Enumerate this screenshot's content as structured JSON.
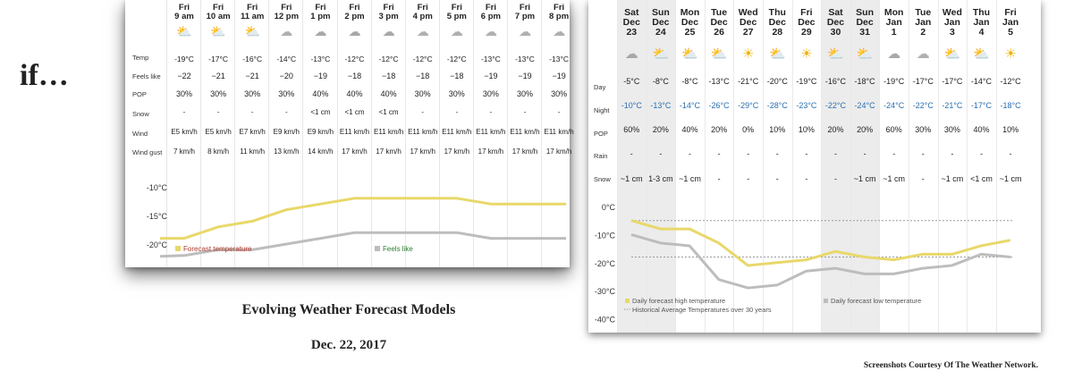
{
  "intro": "if…",
  "caption": {
    "title": "Evolving Weather Forecast Models",
    "date": "Dec. 22, 2017",
    "credit": "Screenshots Courtesy Of The Weather Network."
  },
  "hourly": {
    "row_labels": {
      "temp": "Temp",
      "feels": "Feels like",
      "pop": "POP",
      "snow": "Snow",
      "wind": "Wind",
      "gust": "Wind gust"
    },
    "columns": [
      {
        "day": "Fri",
        "time": "9 am",
        "icon": "partly-sunny-snow-icon",
        "temp": "-19°C",
        "feels": "−22",
        "pop": "30%",
        "snow": "-",
        "wind": "E5 km/h",
        "gust": "7 km/h"
      },
      {
        "day": "Fri",
        "time": "10 am",
        "icon": "partly-sunny-snow-icon",
        "temp": "-17°C",
        "feels": "−21",
        "pop": "30%",
        "snow": "-",
        "wind": "E5 km/h",
        "gust": "8 km/h"
      },
      {
        "day": "Fri",
        "time": "11 am",
        "icon": "partly-sunny-snow-icon",
        "temp": "-16°C",
        "feels": "−21",
        "pop": "30%",
        "snow": "-",
        "wind": "E7 km/h",
        "gust": "11 km/h"
      },
      {
        "day": "Fri",
        "time": "12 pm",
        "icon": "cloudy-icon",
        "temp": "-14°C",
        "feels": "−20",
        "pop": "30%",
        "snow": "-",
        "wind": "E9 km/h",
        "gust": "13 km/h"
      },
      {
        "day": "Fri",
        "time": "1 pm",
        "icon": "snow-cloud-icon",
        "temp": "-13°C",
        "feels": "−19",
        "pop": "40%",
        "snow": "<1 cm",
        "wind": "E9 km/h",
        "gust": "14 km/h"
      },
      {
        "day": "Fri",
        "time": "2 pm",
        "icon": "snow-cloud-icon",
        "temp": "-12°C",
        "feels": "−18",
        "pop": "40%",
        "snow": "<1 cm",
        "wind": "E11 km/h",
        "gust": "17 km/h"
      },
      {
        "day": "Fri",
        "time": "3 pm",
        "icon": "snow-cloud-icon",
        "temp": "-12°C",
        "feels": "−18",
        "pop": "40%",
        "snow": "<1 cm",
        "wind": "E11 km/h",
        "gust": "17 km/h"
      },
      {
        "day": "Fri",
        "time": "4 pm",
        "icon": "cloudy-icon",
        "temp": "-12°C",
        "feels": "−18",
        "pop": "30%",
        "snow": "-",
        "wind": "E11 km/h",
        "gust": "17 km/h"
      },
      {
        "day": "Fri",
        "time": "5 pm",
        "icon": "cloudy-icon",
        "temp": "-12°C",
        "feels": "−18",
        "pop": "30%",
        "snow": "-",
        "wind": "E11 km/h",
        "gust": "17 km/h"
      },
      {
        "day": "Fri",
        "time": "6 pm",
        "icon": "cloudy-icon",
        "temp": "-13°C",
        "feels": "−19",
        "pop": "30%",
        "snow": "-",
        "wind": "E11 km/h",
        "gust": "17 km/h"
      },
      {
        "day": "Fri",
        "time": "7 pm",
        "icon": "cloudy-icon",
        "temp": "-13°C",
        "feels": "−19",
        "pop": "30%",
        "snow": "-",
        "wind": "E11 km/h",
        "gust": "17 km/h"
      },
      {
        "day": "Fri",
        "time": "8 pm",
        "icon": "cloudy-icon",
        "temp": "-13°C",
        "feels": "−19",
        "pop": "30%",
        "snow": "-",
        "wind": "E11 km/h",
        "gust": "17 km/h"
      }
    ]
  },
  "daily": {
    "row_labels": {
      "day": "Day",
      "night": "Night",
      "pop": "POP",
      "rain": "Rain",
      "snow": "Snow"
    },
    "columns": [
      {
        "dow": "Sat",
        "mon": "Dec",
        "num": "23",
        "shade": true,
        "icon": "snow-cloud-icon",
        "day": "-5°C",
        "night": "-10°C",
        "pop": "60%",
        "rain": "-",
        "snow": "~1 cm"
      },
      {
        "dow": "Sun",
        "mon": "Dec",
        "num": "24",
        "shade": true,
        "icon": "sun-cloud-icon",
        "day": "-8°C",
        "night": "-13°C",
        "pop": "20%",
        "rain": "-",
        "snow": "1-3 cm"
      },
      {
        "dow": "Mon",
        "mon": "Dec",
        "num": "25",
        "shade": false,
        "icon": "sun-snow-icon",
        "day": "-8°C",
        "night": "-14°C",
        "pop": "40%",
        "rain": "-",
        "snow": "~1 cm"
      },
      {
        "dow": "Tue",
        "mon": "Dec",
        "num": "26",
        "shade": false,
        "icon": "sun-cloud-icon",
        "day": "-13°C",
        "night": "-26°C",
        "pop": "20%",
        "rain": "-",
        "snow": "-"
      },
      {
        "dow": "Wed",
        "mon": "Dec",
        "num": "27",
        "shade": false,
        "icon": "sun-icon",
        "day": "-21°C",
        "night": "-29°C",
        "pop": "0%",
        "rain": "-",
        "snow": "-"
      },
      {
        "dow": "Thu",
        "mon": "Dec",
        "num": "28",
        "shade": false,
        "icon": "sun-cloud-icon",
        "day": "-20°C",
        "night": "-28°C",
        "pop": "10%",
        "rain": "-",
        "snow": "-"
      },
      {
        "dow": "Fri",
        "mon": "Dec",
        "num": "29",
        "shade": false,
        "icon": "sun-icon",
        "day": "-19°C",
        "night": "-23°C",
        "pop": "10%",
        "rain": "-",
        "snow": "-"
      },
      {
        "dow": "Sat",
        "mon": "Dec",
        "num": "30",
        "shade": true,
        "icon": "sun-cloud-icon",
        "day": "-16°C",
        "night": "-22°C",
        "pop": "20%",
        "rain": "-",
        "snow": "-"
      },
      {
        "dow": "Sun",
        "mon": "Dec",
        "num": "31",
        "shade": true,
        "icon": "sun-cloud-icon",
        "day": "-18°C",
        "night": "-24°C",
        "pop": "20%",
        "rain": "-",
        "snow": "~1 cm"
      },
      {
        "dow": "Mon",
        "mon": "Jan",
        "num": "1",
        "shade": false,
        "icon": "snow-cloud-icon",
        "day": "-19°C",
        "night": "-24°C",
        "pop": "60%",
        "rain": "-",
        "snow": "~1 cm"
      },
      {
        "dow": "Tue",
        "mon": "Jan",
        "num": "2",
        "shade": false,
        "icon": "cloudy-icon",
        "day": "-17°C",
        "night": "-22°C",
        "pop": "30%",
        "rain": "-",
        "snow": "-"
      },
      {
        "dow": "Wed",
        "mon": "Jan",
        "num": "3",
        "shade": false,
        "icon": "sun-cloud-icon",
        "day": "-17°C",
        "night": "-21°C",
        "pop": "30%",
        "rain": "-",
        "snow": "~1 cm"
      },
      {
        "dow": "Thu",
        "mon": "Jan",
        "num": "4",
        "shade": false,
        "icon": "sun-snow-icon",
        "day": "-14°C",
        "night": "-17°C",
        "pop": "40%",
        "rain": "-",
        "snow": "<1 cm"
      },
      {
        "dow": "Fri",
        "mon": "Jan",
        "num": "5",
        "shade": false,
        "icon": "sun-icon",
        "day": "-12°C",
        "night": "-18°C",
        "pop": "10%",
        "rain": "-",
        "snow": "~1 cm"
      }
    ]
  },
  "chart_data": [
    {
      "type": "line",
      "x": [
        "9 am",
        "10 am",
        "11 am",
        "12 pm",
        "1 pm",
        "2 pm",
        "3 pm",
        "4 pm",
        "5 pm",
        "6 pm",
        "7 pm",
        "8 pm"
      ],
      "series": [
        {
          "name": "Forecast temperature",
          "color": "#e8d86a",
          "values": [
            -19,
            -17,
            -16,
            -14,
            -13,
            -12,
            -12,
            -12,
            -12,
            -13,
            -13,
            -13
          ]
        },
        {
          "name": "Feels like",
          "color": "#bdbdbd",
          "values": [
            -22,
            -21,
            -21,
            -20,
            -19,
            -18,
            -18,
            -18,
            -18,
            -19,
            -19,
            -19
          ]
        }
      ],
      "y_ticks": [
        "-10°C",
        "-15°C",
        "-20°C"
      ],
      "ylim": [
        -22,
        -9
      ],
      "legend": "bottom"
    },
    {
      "type": "line",
      "x": [
        "Dec 23",
        "Dec 24",
        "Dec 25",
        "Dec 26",
        "Dec 27",
        "Dec 28",
        "Dec 29",
        "Dec 30",
        "Dec 31",
        "Jan 1",
        "Jan 2",
        "Jan 3",
        "Jan 4",
        "Jan 5"
      ],
      "series": [
        {
          "name": "Daily forecast high temperature",
          "color": "#e8d86a",
          "values": [
            -5,
            -8,
            -8,
            -13,
            -21,
            -20,
            -19,
            -16,
            -18,
            -19,
            -17,
            -17,
            -14,
            -12
          ]
        },
        {
          "name": "Daily forecast low temperature",
          "color": "#bdbdbd",
          "values": [
            -10,
            -13,
            -14,
            -26,
            -29,
            -28,
            -23,
            -22,
            -24,
            -24,
            -22,
            -21,
            -17,
            -18
          ]
        },
        {
          "name": "Historical Average Temperatures over 30 years",
          "color": "#999999",
          "dashed": true,
          "values_band": [
            -5,
            -18
          ]
        }
      ],
      "y_ticks": [
        "0°C",
        "-10°C",
        "-20°C",
        "-30°C",
        "-40°C"
      ],
      "ylim": [
        -40,
        0
      ],
      "legend": "bottom"
    }
  ]
}
